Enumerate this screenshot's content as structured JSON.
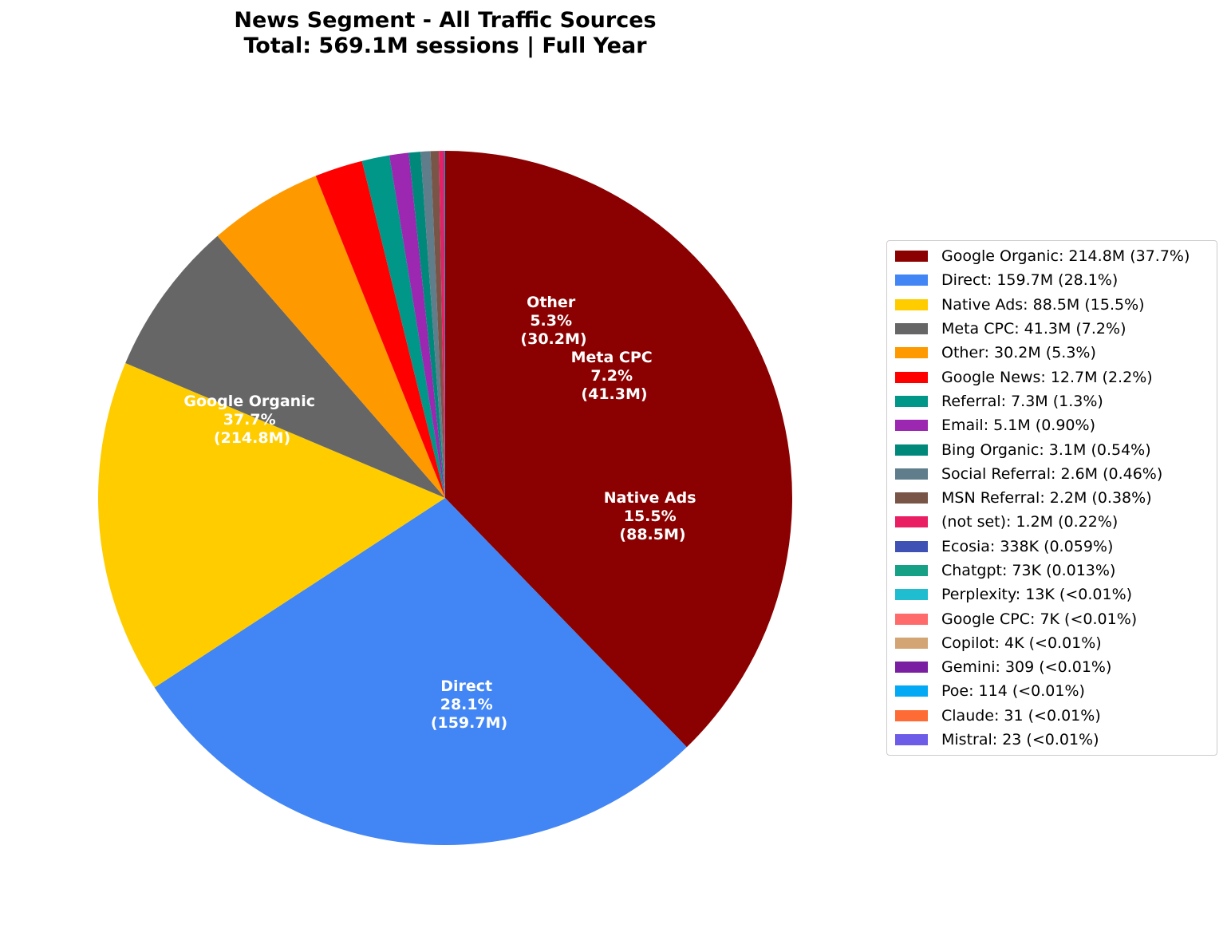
{
  "title": {
    "line1": "News Segment - All Traffic Sources",
    "line2": "Total: 569.1M sessions | Full Year"
  },
  "chart_data": {
    "type": "pie",
    "title": "News Segment - All Traffic Sources\nTotal: 569.1M sessions | Full Year",
    "total": "569.1M sessions",
    "start_angle": 90,
    "direction": "clockwise",
    "legend_position": "right",
    "categories": [
      "Google Organic",
      "Direct",
      "Native Ads",
      "Meta CPC",
      "Other",
      "Google News",
      "Referral",
      "Email",
      "Bing Organic",
      "Social Referral",
      "MSN Referral",
      "(not set)",
      "Ecosia",
      "Chatgpt",
      "Perplexity",
      "Google CPC",
      "Copilot",
      "Gemini",
      "Poe",
      "Claude",
      "Mistral"
    ],
    "values": [
      214800000,
      159700000,
      88500000,
      41300000,
      30200000,
      12700000,
      7300000,
      5100000,
      3100000,
      2600000,
      2200000,
      1200000,
      338000,
      73000,
      13000,
      7000,
      4000,
      309,
      114,
      31,
      23
    ],
    "percentages": [
      "37.7%",
      "28.1%",
      "15.5%",
      "7.2%",
      "5.3%",
      "2.2%",
      "1.3%",
      "0.90%",
      "0.54%",
      "0.46%",
      "0.38%",
      "0.22%",
      "0.059%",
      "0.013%",
      "<0.01%",
      "<0.01%",
      "<0.01%",
      "<0.01%",
      "<0.01%",
      "<0.01%",
      "<0.01%"
    ],
    "colors": [
      "#8b0000",
      "#4285f4",
      "#ffcc00",
      "#666666",
      "#ff9900",
      "#ff0000",
      "#009688",
      "#9c27b0",
      "#00897b",
      "#607d8b",
      "#795548",
      "#e91e63",
      "#3f51b5",
      "#16a085",
      "#20bcd0",
      "#ff6b6b",
      "#d4a574",
      "#7b1fa2",
      "#03a9f4",
      "#ff6b35",
      "#6c5ce7"
    ],
    "slice_labels": [
      {
        "name": "Google Organic",
        "pct": "37.7%",
        "value": "(214.8M)"
      },
      {
        "name": "Direct",
        "pct": "28.1%",
        "value": "(159.7M)"
      },
      {
        "name": "Native Ads",
        "pct": "15.5%",
        "value": "(88.5M)"
      },
      {
        "name": "Meta CPC",
        "pct": "7.2%",
        "value": "(41.3M)"
      },
      {
        "name": "Other",
        "pct": "5.3%",
        "value": "(30.2M)"
      }
    ]
  },
  "legend": {
    "items": [
      {
        "label": "Google Organic: 214.8M (37.7%)",
        "color": "#8b0000"
      },
      {
        "label": "Direct: 159.7M (28.1%)",
        "color": "#4285f4"
      },
      {
        "label": "Native Ads: 88.5M (15.5%)",
        "color": "#ffcc00"
      },
      {
        "label": "Meta CPC: 41.3M (7.2%)",
        "color": "#666666"
      },
      {
        "label": "Other: 30.2M (5.3%)",
        "color": "#ff9900"
      },
      {
        "label": "Google News: 12.7M (2.2%)",
        "color": "#ff0000"
      },
      {
        "label": "Referral: 7.3M (1.3%)",
        "color": "#009688"
      },
      {
        "label": "Email: 5.1M (0.90%)",
        "color": "#9c27b0"
      },
      {
        "label": "Bing Organic: 3.1M (0.54%)",
        "color": "#00897b"
      },
      {
        "label": "Social Referral: 2.6M (0.46%)",
        "color": "#607d8b"
      },
      {
        "label": "MSN Referral: 2.2M (0.38%)",
        "color": "#795548"
      },
      {
        "label": "(not set): 1.2M (0.22%)",
        "color": "#e91e63"
      },
      {
        "label": "Ecosia: 338K (0.059%)",
        "color": "#3f51b5"
      },
      {
        "label": "Chatgpt: 73K (0.013%)",
        "color": "#16a085"
      },
      {
        "label": "Perplexity: 13K (<0.01%)",
        "color": "#20bcd0"
      },
      {
        "label": "Google CPC: 7K (<0.01%)",
        "color": "#ff6b6b"
      },
      {
        "label": "Copilot: 4K (<0.01%)",
        "color": "#d4a574"
      },
      {
        "label": "Gemini: 309 (<0.01%)",
        "color": "#7b1fa2"
      },
      {
        "label": "Poe: 114 (<0.01%)",
        "color": "#03a9f4"
      },
      {
        "label": "Claude: 31 (<0.01%)",
        "color": "#ff6b35"
      },
      {
        "label": "Mistral: 23 (<0.01%)",
        "color": "#6c5ce7"
      }
    ]
  }
}
